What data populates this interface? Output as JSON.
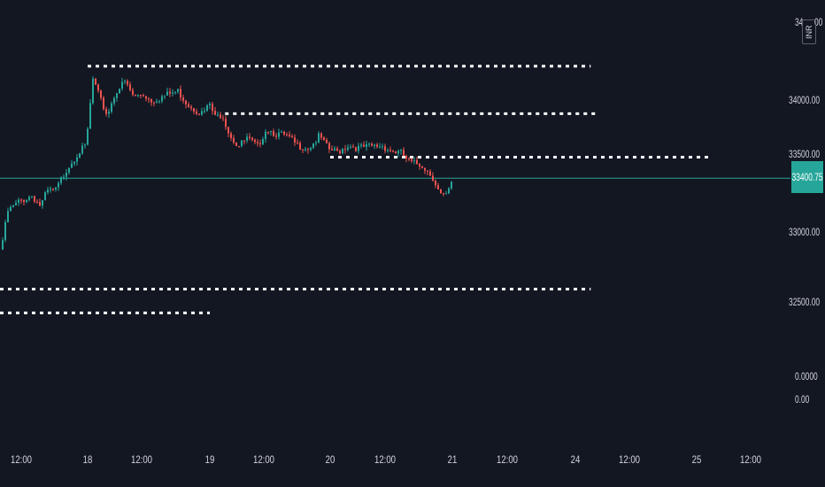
{
  "chart_data": {
    "type": "candlestick",
    "title": "",
    "currency": "INR",
    "last_price_label": "33400.75",
    "price_axis_labels": [
      "34000.00",
      "33500.00",
      "33000.00",
      "32500.00"
    ],
    "top_partial_label": "34",
    "top_partial_label_right": "00",
    "indicator_labels": [
      "0.0000",
      "0.00"
    ],
    "time_axis_labels": [
      "12:00",
      "18",
      "12:00",
      "19",
      "12:00",
      "20",
      "12:00",
      "21",
      "12:00",
      "24",
      "12:00",
      "25",
      "12:00"
    ],
    "ylim": [
      32000,
      34300
    ],
    "horizontal_levels": [
      {
        "price": 34250,
        "from": "18 00:00",
        "to": "24 03:00"
      },
      {
        "price": 33890,
        "from": "19 03:00",
        "to": "24 04:00"
      },
      {
        "price": 33560,
        "from": "20 00:00",
        "to": "25 03:00"
      },
      {
        "price": 32560,
        "from": "17 00:00",
        "to": "24 03:00"
      },
      {
        "price": 32380,
        "from": "17 00:00",
        "to": "19 00:00"
      }
    ],
    "price_path": [
      [
        0,
        32860
      ],
      [
        8,
        33150
      ],
      [
        20,
        33220
      ],
      [
        35,
        33270
      ],
      [
        45,
        33190
      ],
      [
        52,
        33300
      ],
      [
        62,
        33310
      ],
      [
        75,
        33480
      ],
      [
        88,
        33600
      ],
      [
        96,
        33640
      ],
      [
        104,
        34150
      ],
      [
        112,
        34000
      ],
      [
        120,
        33880
      ],
      [
        130,
        34060
      ],
      [
        140,
        34130
      ],
      [
        150,
        34020
      ],
      [
        160,
        34040
      ],
      [
        170,
        33990
      ],
      [
        180,
        34010
      ],
      [
        190,
        34040
      ],
      [
        200,
        34060
      ],
      [
        210,
        33970
      ],
      [
        220,
        33920
      ],
      [
        228,
        33890
      ],
      [
        236,
        33960
      ],
      [
        242,
        33860
      ],
      [
        250,
        33890
      ],
      [
        258,
        33740
      ],
      [
        268,
        33640
      ],
      [
        278,
        33700
      ],
      [
        290,
        33640
      ],
      [
        300,
        33780
      ],
      [
        310,
        33740
      ],
      [
        322,
        33720
      ],
      [
        335,
        33650
      ],
      [
        348,
        33630
      ],
      [
        360,
        33720
      ],
      [
        370,
        33620
      ],
      [
        380,
        33600
      ],
      [
        392,
        33650
      ],
      [
        404,
        33630
      ],
      [
        418,
        33640
      ],
      [
        430,
        33650
      ],
      [
        440,
        33610
      ],
      [
        452,
        33590
      ],
      [
        462,
        33520
      ],
      [
        476,
        33500
      ],
      [
        488,
        33410
      ],
      [
        496,
        33280
      ],
      [
        502,
        33250
      ],
      [
        510,
        33370
      ]
    ]
  }
}
